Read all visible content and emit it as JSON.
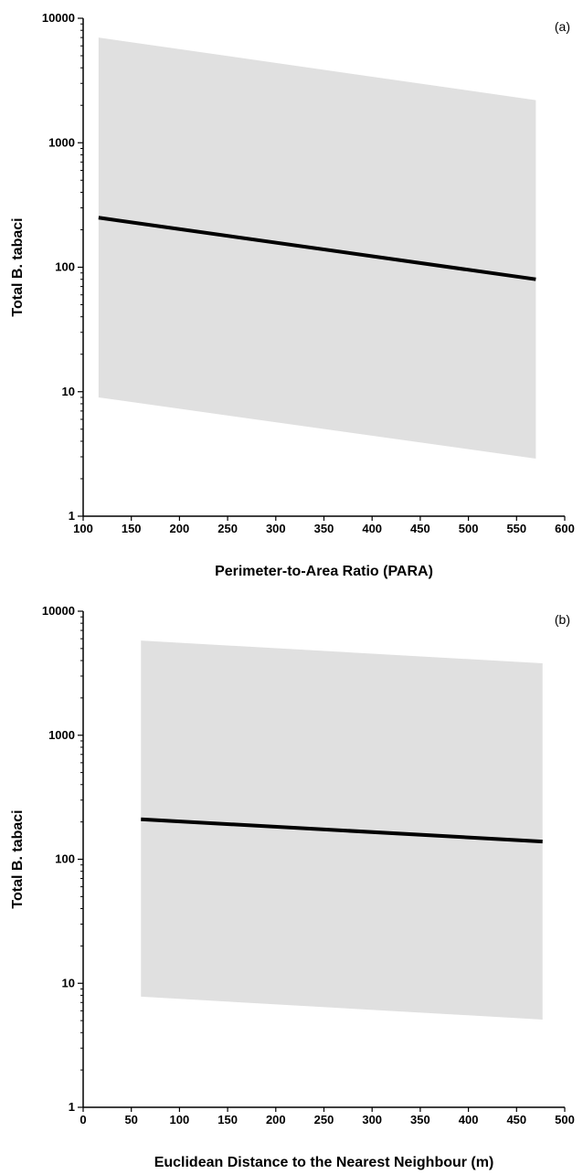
{
  "chart_data": [
    {
      "type": "line",
      "panel_label": "(a)",
      "xlabel": "Perimeter-to-Area Ratio (PARA)",
      "ylabel": "Total B. tabaci",
      "xlim": [
        100,
        600
      ],
      "ylim": [
        1,
        10000
      ],
      "yscale": "log",
      "grid": false,
      "x_ticks": [
        "100",
        "150",
        "200",
        "250",
        "300",
        "350",
        "400",
        "450",
        "500",
        "550",
        "600"
      ],
      "y_ticks": [
        "1",
        "10",
        "100",
        "1000",
        "10000"
      ],
      "fit": {
        "x": [
          116,
          570
        ],
        "y": [
          250,
          80
        ]
      },
      "band_upper": {
        "x": [
          116,
          570
        ],
        "y": [
          7000,
          2200
        ]
      },
      "band_lower": {
        "x": [
          116,
          570
        ],
        "y": [
          9,
          2.9
        ]
      },
      "band_color": "#e0e0e0",
      "line_color": "#000000"
    },
    {
      "type": "line",
      "panel_label": "(b)",
      "xlabel": "Euclidean Distance to the Nearest Neighbour (m)",
      "ylabel": "Total B. tabaci",
      "xlim": [
        0,
        500
      ],
      "ylim": [
        1,
        10000
      ],
      "yscale": "log",
      "grid": false,
      "x_ticks": [
        "0",
        "50",
        "100",
        "150",
        "200",
        "250",
        "300",
        "350",
        "400",
        "450",
        "500"
      ],
      "y_ticks": [
        "1",
        "10",
        "100",
        "1000",
        "10000"
      ],
      "fit": {
        "x": [
          60,
          477
        ],
        "y": [
          210,
          139
        ]
      },
      "band_upper": {
        "x": [
          60,
          477
        ],
        "y": [
          5800,
          3800
        ]
      },
      "band_lower": {
        "x": [
          60,
          477
        ],
        "y": [
          7.8,
          5.1
        ]
      },
      "band_color": "#e0e0e0",
      "line_color": "#000000"
    }
  ]
}
